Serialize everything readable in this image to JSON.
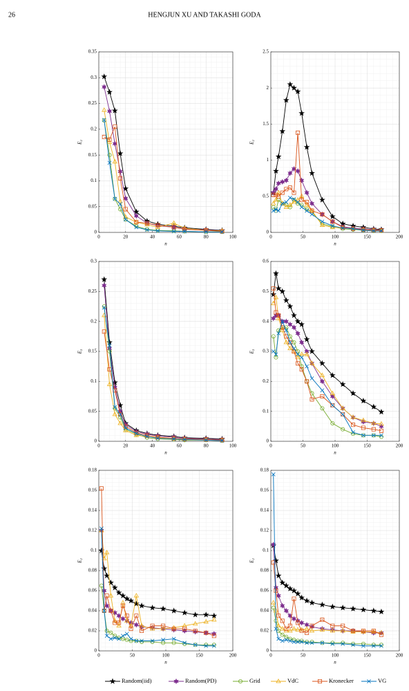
{
  "header": {
    "page_number": "26",
    "running_title": "HENGJUN XU AND TAKASHI GODA"
  },
  "chart_data": [
    {
      "type": "line",
      "xlabel": "n",
      "ylabel": "E₂",
      "xlim": [
        0,
        100
      ],
      "xticks": [
        0,
        20,
        40,
        60,
        80,
        100
      ],
      "ylim": [
        0,
        0.35
      ],
      "yticks": [
        0,
        0.05,
        0.1,
        0.15,
        0.2,
        0.25,
        0.3,
        0.35
      ],
      "grid": true,
      "x": [
        4,
        8,
        12,
        16,
        20,
        28,
        36,
        44,
        56,
        64,
        80,
        92
      ],
      "series": [
        {
          "name": "Random(iid)",
          "color": "#000000",
          "marker": "pentagram",
          "values": [
            0.302,
            0.272,
            0.236,
            0.153,
            0.085,
            0.04,
            0.022,
            0.016,
            0.012,
            0.009,
            0.006,
            0.004
          ]
        },
        {
          "name": "Random(PD)",
          "color": "#7e2f8e",
          "marker": "hexagram",
          "values": [
            0.282,
            0.235,
            0.172,
            0.118,
            0.066,
            0.032,
            0.018,
            0.013,
            0.01,
            0.007,
            0.005,
            0.003
          ]
        },
        {
          "name": "Grid",
          "color": "#77ac30",
          "marker": "circle",
          "values": [
            0.217,
            0.15,
            0.065,
            0.045,
            0.025,
            0.012,
            0.006,
            0.004,
            0.003,
            0.002,
            0.001,
            0.001
          ]
        },
        {
          "name": "VdC",
          "color": "#edb120",
          "marker": "triangle",
          "values": [
            0.237,
            0.175,
            0.137,
            0.06,
            0.03,
            0.02,
            0.015,
            0.01,
            0.018,
            0.008,
            0.004,
            0.003
          ]
        },
        {
          "name": "Kronecker",
          "color": "#d95319",
          "marker": "square",
          "values": [
            0.185,
            0.18,
            0.205,
            0.105,
            0.045,
            0.02,
            0.018,
            0.014,
            0.01,
            0.006,
            0.004,
            0.002
          ]
        },
        {
          "name": "VG",
          "color": "#0072bd",
          "marker": "x",
          "values": [
            0.218,
            0.135,
            0.065,
            0.055,
            0.025,
            0.01,
            0.005,
            0.003,
            0.002,
            0.002,
            0.001,
            0.001
          ]
        }
      ]
    },
    {
      "type": "line",
      "xlabel": "n",
      "ylabel": "E₂",
      "xlim": [
        0,
        200
      ],
      "xticks": [
        0,
        50,
        100,
        150,
        200
      ],
      "ylim": [
        0,
        2.5
      ],
      "yticks": [
        0,
        0.5,
        1,
        1.5,
        2,
        2.5
      ],
      "grid": true,
      "x": [
        4,
        8,
        12,
        18,
        24,
        30,
        36,
        42,
        48,
        56,
        64,
        80,
        96,
        112,
        128,
        144,
        160,
        172
      ],
      "series": [
        {
          "color": "#000000",
          "marker": "pentagram",
          "values": [
            0.55,
            0.85,
            1.05,
            1.4,
            1.83,
            2.05,
            2.0,
            1.95,
            1.65,
            1.18,
            0.82,
            0.45,
            0.22,
            0.12,
            0.09,
            0.07,
            0.05,
            0.04
          ]
        },
        {
          "color": "#7e2f8e",
          "marker": "hexagram",
          "values": [
            0.55,
            0.6,
            0.68,
            0.7,
            0.72,
            0.82,
            0.88,
            0.85,
            0.72,
            0.55,
            0.4,
            0.25,
            0.15,
            0.08,
            0.06,
            0.05,
            0.04,
            0.03
          ]
        },
        {
          "color": "#77ac30",
          "marker": "circle",
          "values": [
            0.35,
            0.3,
            0.45,
            0.4,
            0.38,
            0.35,
            0.45,
            0.4,
            0.38,
            0.32,
            0.28,
            0.12,
            0.08,
            0.05,
            0.04,
            0.03,
            0.02,
            0.02
          ]
        },
        {
          "color": "#edb120",
          "marker": "triangle",
          "values": [
            0.4,
            0.45,
            0.55,
            0.4,
            0.35,
            0.38,
            0.42,
            0.45,
            0.5,
            0.38,
            0.3,
            0.1,
            0.07,
            0.06,
            0.05,
            0.04,
            0.03,
            0.02
          ]
        },
        {
          "color": "#d95319",
          "marker": "square",
          "values": [
            0.52,
            0.52,
            0.5,
            0.55,
            0.6,
            0.62,
            0.55,
            1.38,
            0.45,
            0.42,
            0.3,
            0.25,
            0.15,
            0.07,
            0.05,
            0.04,
            0.03,
            0.03
          ]
        },
        {
          "color": "#0072bd",
          "marker": "x",
          "values": [
            0.3,
            0.32,
            0.3,
            0.4,
            0.42,
            0.48,
            0.46,
            0.42,
            0.35,
            0.3,
            0.25,
            0.15,
            0.09,
            0.06,
            0.05,
            0.03,
            0.02,
            0.02
          ]
        }
      ]
    },
    {
      "type": "line",
      "xlabel": "n",
      "ylabel": "E₂",
      "xlim": [
        0,
        100
      ],
      "xticks": [
        0,
        20,
        40,
        60,
        80,
        100
      ],
      "ylim": [
        0,
        0.3
      ],
      "yticks": [
        0,
        0.05,
        0.1,
        0.15,
        0.2,
        0.25,
        0.3
      ],
      "grid": true,
      "x": [
        4,
        8,
        12,
        16,
        20,
        28,
        36,
        44,
        56,
        64,
        80,
        92
      ],
      "series": [
        {
          "color": "#000000",
          "marker": "pentagram",
          "values": [
            0.27,
            0.165,
            0.098,
            0.06,
            0.03,
            0.018,
            0.013,
            0.01,
            0.008,
            0.006,
            0.005,
            0.004
          ]
        },
        {
          "color": "#7e2f8e",
          "marker": "hexagram",
          "values": [
            0.26,
            0.155,
            0.09,
            0.05,
            0.028,
            0.016,
            0.012,
            0.009,
            0.007,
            0.005,
            0.004,
            0.003
          ]
        },
        {
          "color": "#77ac30",
          "marker": "circle",
          "values": [
            0.225,
            0.15,
            0.055,
            0.04,
            0.02,
            0.012,
            0.006,
            0.004,
            0.003,
            0.002,
            0.002,
            0.001
          ]
        },
        {
          "color": "#edb120",
          "marker": "triangle",
          "values": [
            0.21,
            0.095,
            0.045,
            0.03,
            0.018,
            0.01,
            0.008,
            0.006,
            0.004,
            0.003,
            0.002,
            0.002
          ]
        },
        {
          "color": "#d95319",
          "marker": "square",
          "values": [
            0.183,
            0.12,
            0.085,
            0.045,
            0.025,
            0.014,
            0.01,
            0.007,
            0.005,
            0.004,
            0.003,
            0.002
          ]
        },
        {
          "color": "#0072bd",
          "marker": "x",
          "values": [
            0.223,
            0.16,
            0.057,
            0.045,
            0.022,
            0.013,
            0.008,
            0.005,
            0.004,
            0.003,
            0.002,
            0.001
          ]
        }
      ]
    },
    {
      "type": "line",
      "xlabel": "n",
      "ylabel": "E₂",
      "xlim": [
        0,
        200
      ],
      "xticks": [
        0,
        50,
        100,
        150,
        200
      ],
      "ylim": [
        0,
        0.6
      ],
      "yticks": [
        0,
        0.1,
        0.2,
        0.3,
        0.4,
        0.5,
        0.6
      ],
      "grid": true,
      "x": [
        4,
        8,
        12,
        18,
        24,
        30,
        36,
        42,
        48,
        56,
        64,
        80,
        96,
        112,
        128,
        144,
        160,
        172
      ],
      "series": [
        {
          "color": "#000000",
          "marker": "pentagram",
          "values": [
            0.49,
            0.56,
            0.51,
            0.5,
            0.47,
            0.45,
            0.42,
            0.4,
            0.39,
            0.34,
            0.3,
            0.26,
            0.22,
            0.19,
            0.16,
            0.135,
            0.115,
            0.098
          ]
        },
        {
          "color": "#7e2f8e",
          "marker": "hexagram",
          "values": [
            0.41,
            0.42,
            0.42,
            0.4,
            0.4,
            0.39,
            0.38,
            0.36,
            0.33,
            0.3,
            0.26,
            0.2,
            0.15,
            0.11,
            0.08,
            0.065,
            0.06,
            0.05
          ]
        },
        {
          "color": "#77ac30",
          "marker": "circle",
          "values": [
            0.35,
            0.28,
            0.37,
            0.38,
            0.38,
            0.35,
            0.33,
            0.3,
            0.25,
            0.2,
            0.16,
            0.11,
            0.06,
            0.04,
            0.025,
            0.02,
            0.02,
            0.015
          ]
        },
        {
          "color": "#edb120",
          "marker": "triangle",
          "values": [
            0.46,
            0.48,
            0.41,
            0.37,
            0.33,
            0.31,
            0.3,
            0.28,
            0.29,
            0.29,
            0.26,
            0.22,
            0.16,
            0.11,
            0.08,
            0.07,
            0.06,
            0.058
          ]
        },
        {
          "color": "#d95319",
          "marker": "square",
          "values": [
            0.51,
            0.43,
            0.42,
            0.38,
            0.35,
            0.33,
            0.3,
            0.26,
            0.24,
            0.2,
            0.14,
            0.15,
            0.12,
            0.09,
            0.055,
            0.045,
            0.04,
            0.035
          ]
        },
        {
          "color": "#0072bd",
          "marker": "x",
          "values": [
            0.3,
            0.29,
            0.36,
            0.4,
            0.37,
            0.33,
            0.31,
            0.29,
            0.28,
            0.25,
            0.21,
            0.17,
            0.12,
            0.09,
            0.03,
            0.02,
            0.02,
            0.02
          ]
        }
      ]
    },
    {
      "type": "line",
      "xlabel": "n",
      "ylabel": "E₂",
      "xlim": [
        0,
        200
      ],
      "xticks": [
        0,
        50,
        100,
        150,
        200
      ],
      "ylim": [
        0,
        0.18
      ],
      "yticks": [
        0,
        0.02,
        0.04,
        0.06,
        0.08,
        0.1,
        0.12,
        0.14,
        0.16,
        0.18
      ],
      "grid": true,
      "x": [
        4,
        8,
        12,
        18,
        24,
        30,
        36,
        42,
        48,
        56,
        64,
        80,
        96,
        112,
        128,
        144,
        160,
        172
      ],
      "series": [
        {
          "color": "#000000",
          "marker": "pentagram",
          "values": [
            0.1,
            0.082,
            0.075,
            0.068,
            0.063,
            0.058,
            0.055,
            0.052,
            0.05,
            0.047,
            0.045,
            0.043,
            0.042,
            0.04,
            0.038,
            0.036,
            0.036,
            0.035
          ]
        },
        {
          "color": "#7e2f8e",
          "marker": "hexagram",
          "values": [
            0.12,
            0.06,
            0.045,
            0.04,
            0.038,
            0.035,
            0.032,
            0.03,
            0.028,
            0.026,
            0.024,
            0.023,
            0.022,
            0.021,
            0.02,
            0.019,
            0.018,
            0.017
          ]
        },
        {
          "color": "#77ac30",
          "marker": "circle",
          "values": [
            0.065,
            0.04,
            0.02,
            0.018,
            0.015,
            0.013,
            0.012,
            0.011,
            0.01,
            0.01,
            0.009,
            0.009,
            0.008,
            0.008,
            0.007,
            0.006,
            0.006,
            0.006
          ]
        },
        {
          "color": "#edb120",
          "marker": "triangle",
          "values": [
            0.12,
            0.092,
            0.098,
            0.055,
            0.03,
            0.025,
            0.048,
            0.03,
            0.025,
            0.055,
            0.025,
            0.022,
            0.022,
            0.023,
            0.025,
            0.027,
            0.029,
            0.031
          ]
        },
        {
          "color": "#d95319",
          "marker": "square",
          "values": [
            0.162,
            0.04,
            0.055,
            0.04,
            0.028,
            0.028,
            0.045,
            0.035,
            0.022,
            0.035,
            0.02,
            0.025,
            0.025,
            0.022,
            0.022,
            0.02,
            0.018,
            0.015
          ]
        },
        {
          "color": "#0072bd",
          "marker": "x",
          "values": [
            0.122,
            0.04,
            0.015,
            0.012,
            0.013,
            0.012,
            0.015,
            0.017,
            0.012,
            0.01,
            0.01,
            0.01,
            0.011,
            0.012,
            0.008,
            0.006,
            0.005,
            0.005
          ]
        }
      ]
    },
    {
      "type": "line",
      "xlabel": "n",
      "ylabel": "E₂",
      "xlim": [
        0,
        200
      ],
      "xticks": [
        0,
        50,
        100,
        150,
        200
      ],
      "ylim": [
        0,
        0.18
      ],
      "yticks": [
        0,
        0.02,
        0.04,
        0.06,
        0.08,
        0.1,
        0.12,
        0.14,
        0.16,
        0.18
      ],
      "grid": true,
      "x": [
        4,
        8,
        12,
        18,
        24,
        30,
        36,
        42,
        48,
        56,
        64,
        80,
        96,
        112,
        128,
        144,
        160,
        172
      ],
      "series": [
        {
          "color": "#000000",
          "marker": "pentagram",
          "values": [
            0.105,
            0.09,
            0.075,
            0.068,
            0.065,
            0.062,
            0.06,
            0.057,
            0.053,
            0.05,
            0.048,
            0.046,
            0.044,
            0.043,
            0.042,
            0.041,
            0.04,
            0.039
          ]
        },
        {
          "color": "#7e2f8e",
          "marker": "hexagram",
          "values": [
            0.106,
            0.063,
            0.055,
            0.045,
            0.04,
            0.035,
            0.032,
            0.03,
            0.028,
            0.026,
            0.024,
            0.022,
            0.021,
            0.02,
            0.02,
            0.019,
            0.018,
            0.018
          ]
        },
        {
          "color": "#77ac30",
          "marker": "circle",
          "values": [
            0.043,
            0.03,
            0.02,
            0.016,
            0.014,
            0.012,
            0.011,
            0.01,
            0.01,
            0.009,
            0.009,
            0.008,
            0.008,
            0.008,
            0.007,
            0.007,
            0.006,
            0.006
          ]
        },
        {
          "color": "#edb120",
          "marker": "triangle",
          "values": [
            0.048,
            0.04,
            0.025,
            0.022,
            0.02,
            0.02,
            0.022,
            0.021,
            0.021,
            0.022,
            0.02,
            0.021,
            0.02,
            0.02,
            0.019,
            0.019,
            0.019,
            0.018
          ]
        },
        {
          "color": "#d95319",
          "marker": "square",
          "values": [
            0.088,
            0.06,
            0.035,
            0.03,
            0.022,
            0.025,
            0.052,
            0.028,
            0.02,
            0.018,
            0.025,
            0.031,
            0.025,
            0.025,
            0.02,
            0.02,
            0.02,
            0.016
          ]
        },
        {
          "color": "#0072bd",
          "marker": "x",
          "values": [
            0.176,
            0.022,
            0.012,
            0.01,
            0.011,
            0.01,
            0.009,
            0.009,
            0.009,
            0.008,
            0.008,
            0.008,
            0.007,
            0.007,
            0.006,
            0.005,
            0.005,
            0.005
          ]
        }
      ]
    }
  ]
}
